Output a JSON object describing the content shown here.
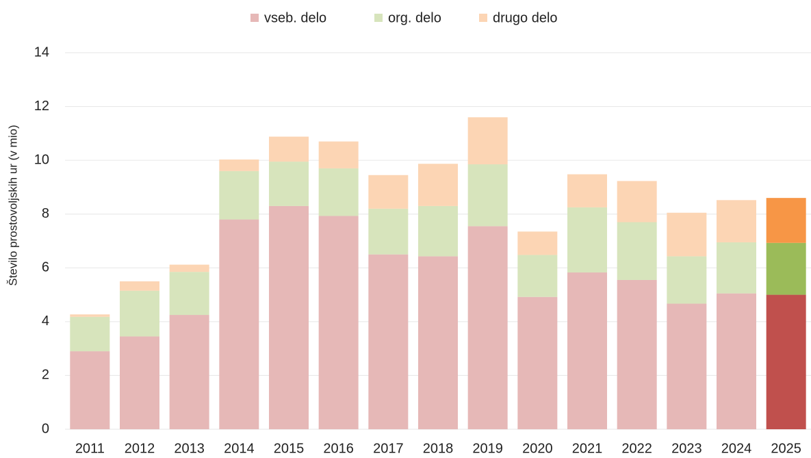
{
  "chart_data": {
    "type": "stacked_bar",
    "y_label": "Število prostovoljskih ur (v mio)",
    "categories": [
      "2011",
      "2012",
      "2013",
      "2014",
      "2015",
      "2016",
      "2017",
      "2018",
      "2019",
      "2020",
      "2021",
      "2022",
      "2023",
      "2024",
      "2025"
    ],
    "series": [
      {
        "name": "vseb. delo",
        "color": "#e6b8b7",
        "colors": [
          "#e6b8b7",
          "#e6b8b7",
          "#e6b8b7",
          "#e6b8b7",
          "#e6b8b7",
          "#e6b8b7",
          "#e6b8b7",
          "#e6b8b7",
          "#e6b8b7",
          "#e6b8b7",
          "#e6b8b7",
          "#e6b8b7",
          "#e6b8b7",
          "#e6b8b7",
          "#c0504d"
        ],
        "values": [
          2.9,
          3.45,
          4.25,
          7.8,
          8.3,
          7.93,
          6.5,
          6.43,
          7.55,
          4.92,
          5.83,
          5.55,
          4.67,
          5.05,
          5.0
        ]
      },
      {
        "name": "org. delo",
        "color": "#d7e4bc",
        "colors": [
          "#d7e4bc",
          "#d7e4bc",
          "#d7e4bc",
          "#d7e4bc",
          "#d7e4bc",
          "#d7e4bc",
          "#d7e4bc",
          "#d7e4bc",
          "#d7e4bc",
          "#d7e4bc",
          "#d7e4bc",
          "#d7e4bc",
          "#d7e4bc",
          "#d7e4bc",
          "#9bbb59"
        ],
        "values": [
          1.28,
          1.7,
          1.6,
          1.8,
          1.65,
          1.77,
          1.7,
          1.87,
          2.3,
          1.56,
          2.42,
          2.15,
          1.76,
          1.9,
          1.93
        ]
      },
      {
        "name": "drugo delo",
        "color": "#fcd5b4",
        "colors": [
          "#fcd5b4",
          "#fcd5b4",
          "#fcd5b4",
          "#fcd5b4",
          "#fcd5b4",
          "#fcd5b4",
          "#fcd5b4",
          "#fcd5b4",
          "#fcd5b4",
          "#fcd5b4",
          "#fcd5b4",
          "#fcd5b4",
          "#fcd5b4",
          "#fcd5b4",
          "#f79646"
        ],
        "values": [
          0.09,
          0.35,
          0.27,
          0.43,
          0.93,
          1.0,
          1.25,
          1.57,
          1.75,
          0.87,
          1.23,
          1.53,
          1.62,
          1.57,
          1.67
        ]
      }
    ],
    "ylim": [
      0,
      14
    ],
    "yticks": [
      0,
      2,
      4,
      6,
      8,
      10,
      12,
      14
    ],
    "grid": true,
    "legend": "top"
  }
}
